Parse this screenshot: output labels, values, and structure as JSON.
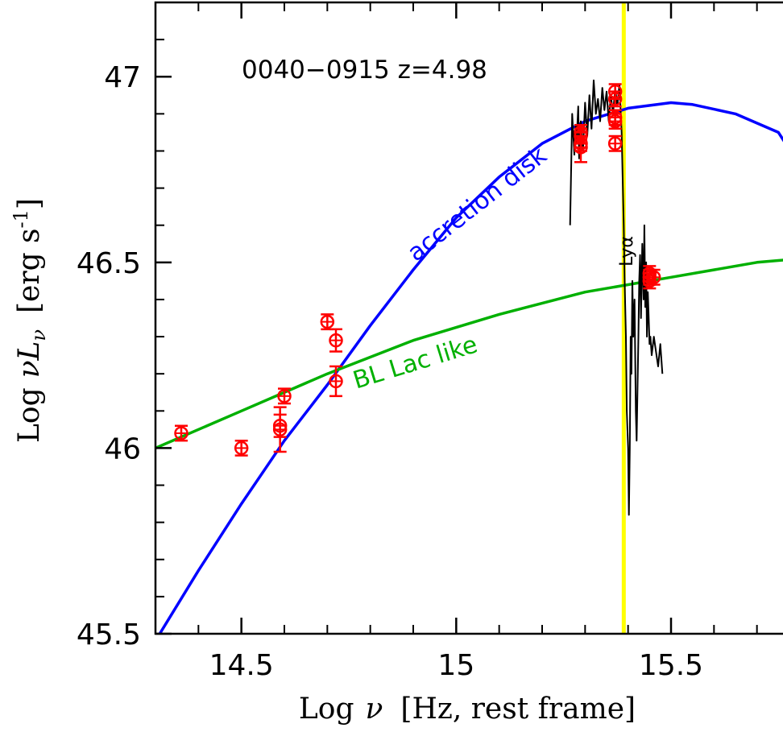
{
  "chart_data": {
    "type": "scatter",
    "title": "0040−0915 z=4.98",
    "xlabel_prefix": "Log",
    "xlabel_symbol": "ν",
    "xlabel_bracket": "[Hz, rest frame]",
    "ylabel_prefix": "Log",
    "ylabel_symbol": "νL",
    "ylabel_sub": "ν",
    "ylabel_unit": "[erg s",
    "ylabel_sup": "-1",
    "ylabel_close": "]",
    "xlim": [
      14.3,
      15.8
    ],
    "ylim": [
      45.5,
      47.2
    ],
    "x_ticks": [
      14.5,
      15,
      15.5
    ],
    "x_tick_labels": [
      "14.5",
      "15",
      "15.5"
    ],
    "y_ticks": [
      45.5,
      46,
      46.5,
      47
    ],
    "y_tick_labels": [
      "45.5",
      "46",
      "46.5",
      "47"
    ],
    "annotations": [
      {
        "text": "accretion disk",
        "x": 15.06,
        "y": 46.64,
        "color": "#0000ff",
        "angle": -38
      },
      {
        "text": "BL Lac like",
        "x": 14.91,
        "y": 46.21,
        "color": "#00b000",
        "angle": -17
      },
      {
        "text": "Lyα",
        "x": 15.41,
        "y": 46.53,
        "color": "#000000",
        "angle": -90
      }
    ],
    "vline": {
      "x": 15.39,
      "color": "#ffff00"
    },
    "colors": {
      "disk": "#0000ff",
      "bllac": "#00b000",
      "points": "#ff0000",
      "spectrum": "#000000",
      "vline": "#ffff00"
    },
    "series": [
      {
        "name": "accretion disk",
        "type": "line",
        "x": [
          14.31,
          14.4,
          14.5,
          14.6,
          14.7,
          14.8,
          14.9,
          15.0,
          15.1,
          15.2,
          15.3,
          15.4,
          15.5,
          15.55,
          15.65,
          15.75,
          15.8
        ],
        "y": [
          45.5,
          45.67,
          45.85,
          46.02,
          46.17,
          46.33,
          46.48,
          46.62,
          46.73,
          46.82,
          46.88,
          46.915,
          46.93,
          46.925,
          46.9,
          46.85,
          46.76
        ]
      },
      {
        "name": "BL Lac like",
        "type": "line",
        "x": [
          14.3,
          14.5,
          14.7,
          14.9,
          15.1,
          15.3,
          15.5,
          15.7,
          15.8
        ],
        "y": [
          46.0,
          46.1,
          46.2,
          46.29,
          46.36,
          46.42,
          46.46,
          46.5,
          46.51
        ]
      },
      {
        "name": "photometry",
        "type": "scatter",
        "x": [
          14.36,
          14.5,
          14.59,
          14.59,
          14.6,
          14.7,
          14.72,
          14.72,
          15.29,
          15.29,
          15.29,
          15.29,
          15.37,
          15.37,
          15.37,
          15.37,
          15.37,
          15.45,
          15.45,
          15.45,
          15.46
        ],
        "y": [
          46.04,
          46.0,
          46.05,
          46.06,
          46.14,
          46.34,
          46.29,
          46.18,
          46.81,
          46.82,
          46.84,
          46.85,
          46.94,
          46.96,
          46.88,
          46.89,
          46.82,
          46.45,
          46.46,
          46.47,
          46.46
        ],
        "yerr": [
          0.02,
          0.02,
          0.06,
          0.03,
          0.02,
          0.02,
          0.03,
          0.04,
          0.04,
          0.02,
          0.02,
          0.02,
          0.02,
          0.02,
          0.02,
          0.02,
          0.02,
          0.02,
          0.02,
          0.02,
          0.02
        ]
      },
      {
        "name": "optical spectrum",
        "type": "line",
        "x": [
          15.265,
          15.27,
          15.275,
          15.278,
          15.28,
          15.284,
          15.286,
          15.29,
          15.295,
          15.3,
          15.305,
          15.31,
          15.315,
          15.32,
          15.325,
          15.33,
          15.335,
          15.34,
          15.345,
          15.35,
          15.355,
          15.36,
          15.365,
          15.37,
          15.375,
          15.38,
          15.385,
          15.39,
          15.392,
          15.395,
          15.397,
          15.4,
          15.402,
          15.404,
          15.406,
          15.408,
          15.41,
          15.412,
          15.415,
          15.418,
          15.42,
          15.424,
          15.426,
          15.428,
          15.43,
          15.433,
          15.436,
          15.438,
          15.44,
          15.442,
          15.444,
          15.446,
          15.448,
          15.45,
          15.452,
          15.455,
          15.46,
          15.465,
          15.47,
          15.475,
          15.48
        ],
        "y": [
          46.6,
          46.9,
          46.79,
          46.87,
          46.82,
          46.92,
          46.78,
          46.88,
          46.8,
          46.93,
          46.84,
          46.95,
          46.86,
          46.99,
          46.9,
          46.94,
          46.88,
          46.97,
          46.91,
          46.96,
          46.88,
          46.95,
          46.9,
          46.97,
          46.92,
          46.98,
          46.85,
          46.6,
          46.45,
          46.3,
          46.1,
          46.0,
          45.82,
          46.0,
          46.3,
          46.2,
          46.45,
          46.3,
          46.4,
          46.1,
          46.02,
          46.3,
          46.45,
          46.52,
          46.35,
          46.55,
          46.4,
          46.6,
          46.38,
          46.5,
          46.3,
          46.42,
          46.35,
          46.28,
          46.3,
          46.25,
          46.3,
          46.26,
          46.22,
          46.28,
          46.2
        ]
      }
    ]
  }
}
